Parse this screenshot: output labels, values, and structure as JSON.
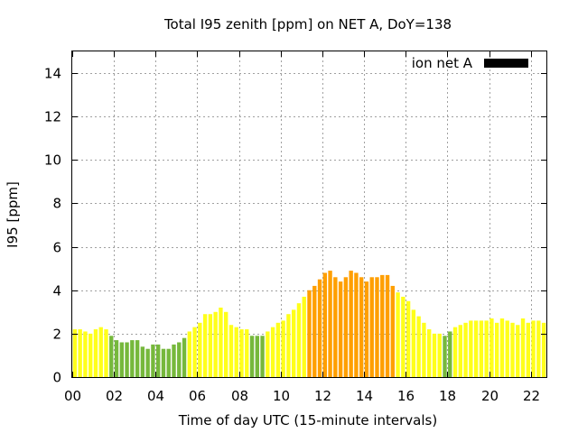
{
  "chart_data": {
    "type": "bar",
    "title": "Total I95 zenith [ppm] on NET A, DoY=138",
    "xlabel": "Time of day UTC (15-minute intervals)",
    "ylabel": "I95 [ppm]",
    "xlim": [
      0,
      22.75
    ],
    "ylim": [
      0,
      15
    ],
    "x_ticks": [
      {
        "value": 0,
        "label": "00"
      },
      {
        "value": 2,
        "label": "02"
      },
      {
        "value": 4,
        "label": "04"
      },
      {
        "value": 6,
        "label": "06"
      },
      {
        "value": 8,
        "label": "08"
      },
      {
        "value": 10,
        "label": "10"
      },
      {
        "value": 12,
        "label": "12"
      },
      {
        "value": 14,
        "label": "14"
      },
      {
        "value": 16,
        "label": "16"
      },
      {
        "value": 18,
        "label": "18"
      },
      {
        "value": 20,
        "label": "20"
      },
      {
        "value": 22,
        "label": "22"
      }
    ],
    "y_ticks": [
      {
        "value": 0,
        "label": "0"
      },
      {
        "value": 2,
        "label": "2"
      },
      {
        "value": 4,
        "label": "4"
      },
      {
        "value": 6,
        "label": "6"
      },
      {
        "value": 8,
        "label": "8"
      },
      {
        "value": 10,
        "label": "10"
      },
      {
        "value": 12,
        "label": "12"
      },
      {
        "value": 14,
        "label": "14"
      }
    ],
    "grid": true,
    "legend": {
      "label": "ion net A",
      "color": "#000000",
      "position": "top-right"
    },
    "bar_width_hours": 0.19,
    "colors": {
      "green": "#76b83c",
      "yellow": "#ffff1a",
      "orange": "#ff9f00"
    },
    "series": [
      {
        "x": [
          0.125,
          0.375,
          0.625,
          0.875,
          1.125,
          1.375,
          1.625,
          1.875,
          2.125,
          2.375,
          2.625,
          2.875,
          3.125,
          3.375,
          3.625,
          3.875,
          4.125,
          4.375,
          4.625,
          4.875,
          5.125,
          5.375,
          5.625,
          5.875,
          6.125,
          6.375,
          6.625,
          6.875,
          7.125,
          7.375,
          7.625,
          7.875,
          8.125,
          8.375,
          8.625,
          8.875,
          9.125,
          9.375,
          9.625,
          9.875,
          10.125,
          10.375,
          10.625,
          10.875,
          11.125,
          11.375,
          11.625,
          11.875,
          12.125,
          12.375,
          12.625,
          12.875,
          13.125,
          13.375,
          13.625,
          13.875,
          14.125,
          14.375,
          14.625,
          14.875,
          15.125,
          15.375,
          15.625,
          15.875,
          16.125,
          16.375,
          16.625,
          16.875,
          17.125,
          17.375,
          17.625,
          17.875,
          18.125,
          18.375,
          18.625,
          18.875,
          19.125,
          19.375,
          19.625,
          19.875,
          20.125,
          20.375,
          20.625,
          20.875,
          21.125,
          21.375,
          21.625,
          21.875,
          22.125,
          22.375,
          22.625
        ],
        "values": [
          2.2,
          2.2,
          2.1,
          2.0,
          2.2,
          2.3,
          2.2,
          1.9,
          1.7,
          1.6,
          1.6,
          1.7,
          1.7,
          1.4,
          1.3,
          1.5,
          1.5,
          1.3,
          1.3,
          1.5,
          1.6,
          1.8,
          2.1,
          2.3,
          2.5,
          2.9,
          2.9,
          3.0,
          3.2,
          3.0,
          2.4,
          2.3,
          2.2,
          2.2,
          1.9,
          1.9,
          1.9,
          2.1,
          2.3,
          2.5,
          2.6,
          2.9,
          3.1,
          3.4,
          3.7,
          4.0,
          4.2,
          4.5,
          4.8,
          4.9,
          4.6,
          4.4,
          4.6,
          4.9,
          4.8,
          4.6,
          4.4,
          4.6,
          4.6,
          4.7,
          4.7,
          4.2,
          3.9,
          3.7,
          3.5,
          3.1,
          2.8,
          2.5,
          2.2,
          2.0,
          2.0,
          1.9,
          2.1,
          2.3,
          2.4,
          2.5,
          2.6,
          2.6,
          2.6,
          2.6,
          2.7,
          2.5,
          2.7,
          2.6,
          2.5,
          2.4,
          2.7,
          2.5,
          2.6,
          2.6,
          2.5
        ],
        "colors": [
          "yellow",
          "yellow",
          "yellow",
          "yellow",
          "yellow",
          "yellow",
          "yellow",
          "green",
          "green",
          "green",
          "green",
          "green",
          "green",
          "green",
          "green",
          "green",
          "green",
          "green",
          "green",
          "green",
          "green",
          "green",
          "yellow",
          "yellow",
          "yellow",
          "yellow",
          "yellow",
          "yellow",
          "yellow",
          "yellow",
          "yellow",
          "yellow",
          "yellow",
          "yellow",
          "green",
          "green",
          "green",
          "yellow",
          "yellow",
          "yellow",
          "yellow",
          "yellow",
          "yellow",
          "yellow",
          "yellow",
          "orange",
          "orange",
          "orange",
          "orange",
          "orange",
          "orange",
          "orange",
          "orange",
          "orange",
          "orange",
          "orange",
          "orange",
          "orange",
          "orange",
          "orange",
          "orange",
          "orange",
          "yellow",
          "yellow",
          "yellow",
          "yellow",
          "yellow",
          "yellow",
          "yellow",
          "yellow",
          "yellow",
          "green",
          "green",
          "yellow",
          "yellow",
          "yellow",
          "yellow",
          "yellow",
          "yellow",
          "yellow",
          "yellow",
          "yellow",
          "yellow",
          "yellow",
          "yellow",
          "yellow",
          "yellow",
          "yellow",
          "yellow",
          "yellow",
          "yellow"
        ]
      }
    ]
  }
}
